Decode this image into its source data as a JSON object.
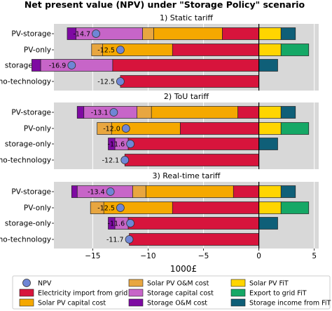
{
  "title": "Net present value (NPV) under  \"Storage Policy\" scenario",
  "xlabel": "1000£",
  "xticks": [
    -15,
    -10,
    -5,
    0,
    5
  ],
  "xlim": [
    -18.5,
    5.4
  ],
  "colors": {
    "electricity_import": "#d7143c",
    "pv_capital": "#f5a800",
    "pv_om": "#e8a640",
    "storage_capital": "#c765c8",
    "storage_om": "#7e0aa2",
    "pv_fit": "#ffd500",
    "export_fit": "#15a866",
    "storage_income": "#0f5f78",
    "npv_marker": "#6f86d6",
    "panel_bg": "#d8d8d8",
    "grid": "#ffffff",
    "zero_line": "#000000"
  },
  "legend": {
    "npv": "NPV",
    "electricity_import": "Electricity import from grid",
    "pv_capital": "Solar PV capital cost",
    "pv_om": "Solar PV O&M cost",
    "storage_capital": "Storage capital cost",
    "storage_om": "Storage O&M cost",
    "pv_fit": "Solar PV FiT",
    "export_fit": "Export to grid FiT",
    "storage_income": "Storage income from FiT"
  },
  "chart_data": [
    {
      "type": "bar",
      "title": "1) Static tariff",
      "categories": [
        "PV-storage",
        "PV-only",
        "storage-only",
        "no-technology"
      ],
      "series": [
        {
          "name": "Electricity import from grid",
          "values": [
            -3.3,
            -7.8,
            -13.2,
            -12.5
          ]
        },
        {
          "name": "Solar PV capital cost",
          "values": [
            -6.2,
            -6.3,
            0,
            0
          ]
        },
        {
          "name": "Solar PV O&M cost",
          "values": [
            -1.0,
            -1.0,
            0,
            0
          ]
        },
        {
          "name": "Storage capital cost",
          "values": [
            -6.0,
            0,
            -6.5,
            0
          ]
        },
        {
          "name": "Storage O&M cost",
          "values": [
            -0.8,
            0,
            -0.8,
            0
          ]
        },
        {
          "name": "Solar PV FiT",
          "values": [
            2.0,
            2.0,
            0,
            0
          ]
        },
        {
          "name": "Export to grid FiT",
          "values": [
            0,
            2.5,
            0,
            0
          ]
        },
        {
          "name": "Storage income from FiT",
          "values": [
            1.3,
            0,
            1.7,
            0
          ]
        }
      ],
      "npv": [
        -14.7,
        -12.5,
        -16.9,
        -12.5
      ],
      "npv_labels": [
        "-14.7",
        "-12.5",
        "-16.9",
        "-12.5"
      ]
    },
    {
      "type": "bar",
      "title": "2) ToU tariff",
      "categories": [
        "PV-storage",
        "PV-only",
        "storage-only",
        "no-technology"
      ],
      "series": [
        {
          "name": "Electricity import from grid",
          "values": [
            -1.9,
            -7.1,
            -11.8,
            -12.1
          ]
        },
        {
          "name": "Solar PV capital cost",
          "values": [
            -7.8,
            -6.2,
            0,
            0
          ]
        },
        {
          "name": "Solar PV O&M cost",
          "values": [
            -1.3,
            -1.3,
            0,
            0
          ]
        },
        {
          "name": "Storage capital cost",
          "values": [
            -4.8,
            0,
            -1.2,
            0
          ]
        },
        {
          "name": "Storage O&M cost",
          "values": [
            -0.6,
            0,
            -0.6,
            0
          ]
        },
        {
          "name": "Solar PV FiT",
          "values": [
            2.0,
            2.0,
            0,
            0
          ]
        },
        {
          "name": "Export to grid FiT",
          "values": [
            0,
            2.5,
            0,
            0
          ]
        },
        {
          "name": "Storage income from FiT",
          "values": [
            1.3,
            0,
            1.7,
            0
          ]
        }
      ],
      "npv": [
        -13.1,
        -12.0,
        -11.6,
        -12.1
      ],
      "npv_labels": [
        "-13.1",
        "-12.0",
        "-11.6",
        "-12.1"
      ]
    },
    {
      "type": "bar",
      "title": "3) Real-time tariff",
      "categories": [
        "PV-storage",
        "PV-only",
        "storage-only",
        "no-technology"
      ],
      "series": [
        {
          "name": "Electricity import from grid",
          "values": [
            -2.3,
            -7.8,
            -11.8,
            -11.7
          ]
        },
        {
          "name": "Solar PV capital cost",
          "values": [
            -7.9,
            -6.2,
            0,
            0
          ]
        },
        {
          "name": "Solar PV O&M cost",
          "values": [
            -1.2,
            -1.2,
            0,
            0
          ]
        },
        {
          "name": "Storage capital cost",
          "values": [
            -5.0,
            0,
            -1.2,
            0
          ]
        },
        {
          "name": "Storage O&M cost",
          "values": [
            -0.5,
            0,
            -0.6,
            0
          ]
        },
        {
          "name": "Solar PV FiT",
          "values": [
            2.0,
            2.0,
            0,
            0
          ]
        },
        {
          "name": "Export to grid FiT",
          "values": [
            0,
            2.5,
            0,
            0
          ]
        },
        {
          "name": "Storage income from FiT",
          "values": [
            1.3,
            0,
            1.7,
            0
          ]
        }
      ],
      "npv": [
        -13.4,
        -12.5,
        -11.6,
        -11.7
      ],
      "npv_labels": [
        "-13.4",
        "-12.5",
        "-11.6",
        "-11.7"
      ]
    }
  ]
}
